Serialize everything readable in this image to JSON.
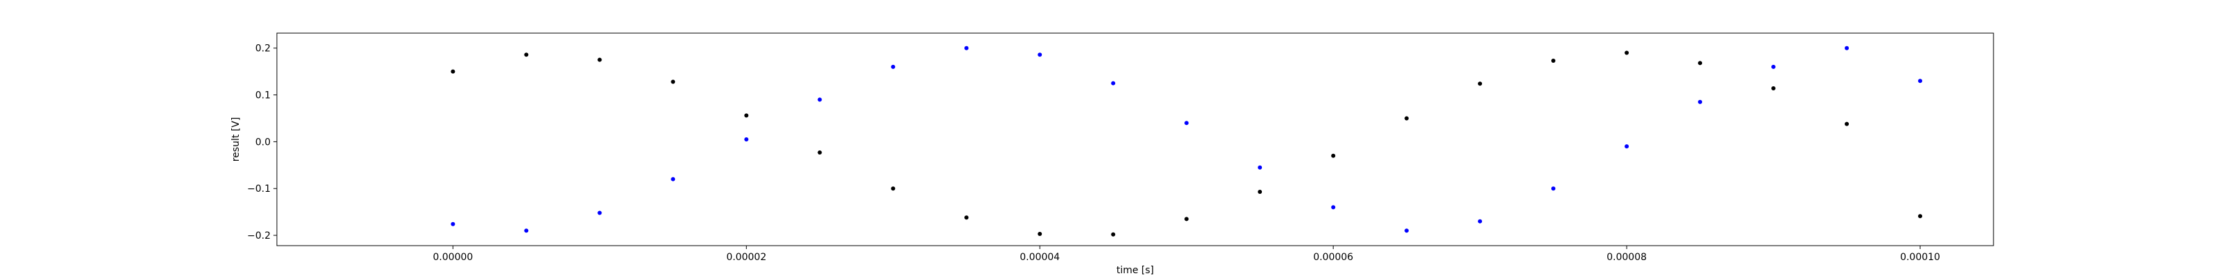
{
  "chart_data": {
    "type": "scatter",
    "title": "",
    "xlabel": "time [s]",
    "ylabel": "result [V]",
    "xlim": [
      -1.2e-05,
      0.000105
    ],
    "ylim": [
      -0.222,
      0.232
    ],
    "grid": false,
    "x_ticks": [
      0,
      2e-05,
      4e-05,
      6e-05,
      8e-05,
      0.0001
    ],
    "x_tick_labels": [
      "0.00000",
      "0.00002",
      "0.00004",
      "0.00006",
      "0.00008",
      "0.00010"
    ],
    "y_ticks": [
      -0.2,
      -0.1,
      0.0,
      0.1,
      0.2
    ],
    "y_tick_labels": [
      "−0.2",
      "−0.1",
      "0.0",
      "0.1",
      "0.2"
    ],
    "series": [
      {
        "color": "#000000",
        "x": [
          0,
          5e-06,
          1e-05,
          1.5e-05,
          2e-05,
          2.5e-05,
          3e-05,
          3.5e-05,
          4e-05,
          4.5e-05,
          5e-05,
          5.5e-05,
          6e-05,
          6.5e-05,
          7e-05,
          7.5e-05,
          8e-05,
          8.5e-05,
          9e-05,
          9.5e-05,
          0.0001
        ],
        "y": [
          0.15,
          0.186,
          0.175,
          0.128,
          0.056,
          -0.023,
          -0.1,
          -0.162,
          -0.197,
          -0.198,
          -0.165,
          -0.107,
          -0.03,
          0.05,
          0.124,
          0.173,
          0.19,
          0.168,
          0.114,
          0.038,
          -0.159
        ]
      },
      {
        "color": "#0000ff",
        "x": [
          0,
          5e-06,
          1e-05,
          1.5e-05,
          2e-05,
          2.5e-05,
          3e-05,
          3.5e-05,
          4e-05,
          4.5e-05,
          5e-05,
          5.5e-05,
          6e-05,
          6.5e-05,
          7e-05,
          7.5e-05,
          8e-05,
          8.5e-05,
          9e-05,
          9.5e-05,
          0.0001
        ],
        "y": [
          -0.176,
          -0.19,
          -0.152,
          -0.08,
          0.005,
          0.09,
          0.16,
          0.2,
          0.186,
          0.125,
          0.04,
          -0.055,
          -0.14,
          -0.19,
          -0.17,
          -0.1,
          -0.01,
          0.085,
          0.16,
          0.2,
          0.13
        ]
      }
    ]
  }
}
